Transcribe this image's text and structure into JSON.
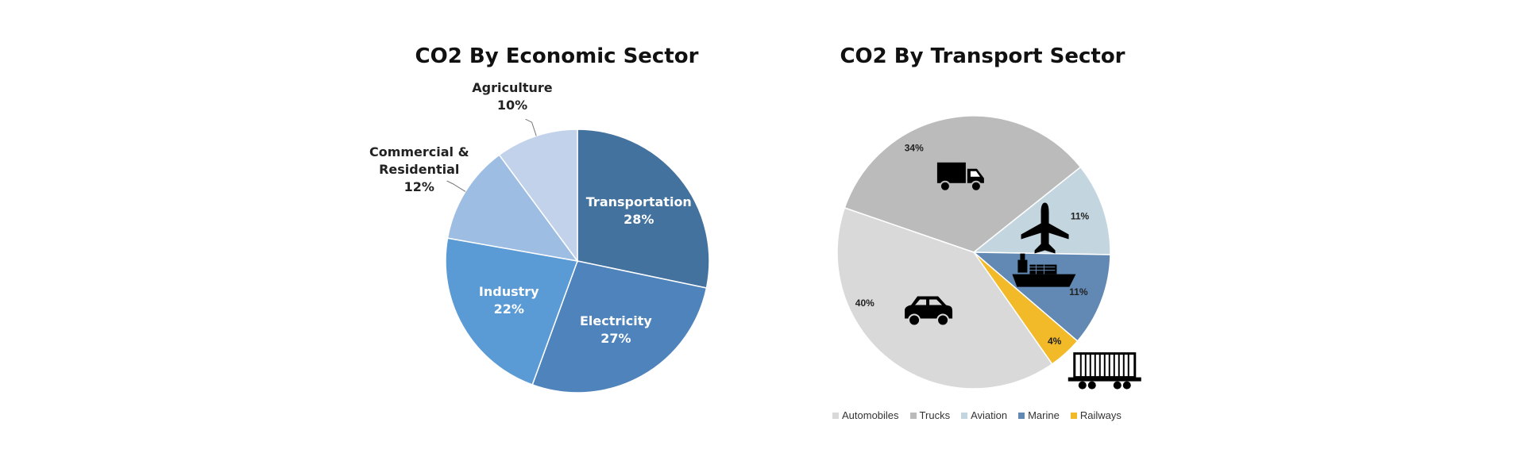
{
  "chart_data": [
    {
      "type": "pie",
      "title": "CO2 By Economic Sector",
      "slices": [
        {
          "label_lines": [
            "Transportation"
          ],
          "value": 28,
          "value_label": "28%",
          "color": "#44729f",
          "label_color": "#ffffff"
        },
        {
          "label_lines": [
            "Electricity"
          ],
          "value": 27,
          "value_label": "27%",
          "color": "#4f83bb",
          "label_color": "#ffffff"
        },
        {
          "label_lines": [
            "Industry"
          ],
          "value": 22,
          "value_label": "22%",
          "color": "#5b9bd5",
          "label_color": "#ffffff"
        },
        {
          "label_lines": [
            "Commercial &",
            "Residential"
          ],
          "value": 12,
          "value_label": "12%",
          "color": "#9dbde3",
          "label_color": "#222222"
        },
        {
          "label_lines": [
            "Agriculture"
          ],
          "value": 10,
          "value_label": "10%",
          "color": "#c2d2ea",
          "label_color": "#222222"
        }
      ],
      "legend": "none"
    },
    {
      "type": "pie",
      "title": "CO2 By Transport Sector",
      "slices": [
        {
          "label": "Trucks",
          "value": 34,
          "value_label": "34%",
          "color": "#bbbbbb",
          "icon": "truck-icon"
        },
        {
          "label": "Aviation",
          "value": 11,
          "value_label": "11%",
          "color": "#c3d6e0",
          "icon": "airplane-icon"
        },
        {
          "label": "Marine",
          "value": 11,
          "value_label": "11%",
          "color": "#6289b3",
          "icon": "ship-icon"
        },
        {
          "label": "Railways",
          "value": 4,
          "value_label": "4%",
          "color": "#f2b928",
          "icon": "train-car-icon"
        },
        {
          "label": "Automobiles",
          "value": 40,
          "value_label": "40%",
          "color": "#d9d9d9",
          "icon": "car-icon"
        }
      ],
      "legend": "bottom",
      "legend_order": [
        "Automobiles",
        "Trucks",
        "Aviation",
        "Marine",
        "Railways"
      ]
    }
  ]
}
